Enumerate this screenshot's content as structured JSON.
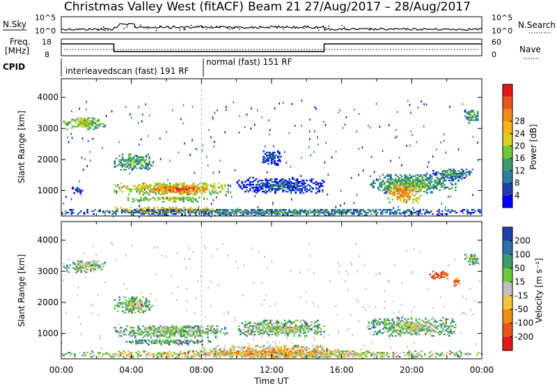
{
  "header": {
    "site": "Christmas Valley West (fitACF)",
    "beam": "Beam 21  27/Aug/2017 – 28/Aug/2017"
  },
  "colors": {
    "frame": "#000000",
    "noise": "#000000",
    "grid": "#bbbbbb",
    "ground_scatter": "#c0c0c0"
  },
  "top_panels": {
    "noise": {
      "left_label": "N.Sky",
      "right_label": "N.Search",
      "left_ticks": [
        "10^5",
        "10^0"
      ],
      "right_ticks": [
        "10^5",
        "10^0"
      ]
    },
    "freq": {
      "left_label_1": "Freq.",
      "left_label_2": "[MHz]",
      "right_label": "Nave",
      "left_ticks": [
        "18",
        "8"
      ],
      "right_ticks": [
        "60",
        "0"
      ]
    },
    "cpid": {
      "label": "CPID",
      "mode_1": "interleavedscan (fast) 191 RF",
      "mode_2": "normal (fast) 151 RF"
    }
  },
  "chart_data": [
    {
      "type": "heatmap",
      "name": "power",
      "ylabel": "Slant Range [km]",
      "ylim": [
        180,
        4600
      ],
      "yticks": [
        1000,
        2000,
        3000,
        4000
      ],
      "xlim_hours": [
        0,
        24
      ],
      "xticks": [
        "00:00",
        "04:00",
        "08:00",
        "12:00",
        "16:00",
        "20:00",
        "00:00"
      ],
      "colorbar": {
        "label": "Power [dB]",
        "ticks": [
          "4",
          "8",
          "12",
          "16",
          "20",
          "24",
          "28"
        ],
        "colors": [
          "#0000ff",
          "#1f3fa8",
          "#2d7fa0",
          "#3c9a6e",
          "#6cc93a",
          "#d7d01e",
          "#f4b41c",
          "#f08c14",
          "#e8541c",
          "#e01818"
        ]
      },
      "blobs": [
        {
          "t0": 0.1,
          "t1": 2.5,
          "r0": 2950,
          "r1": 3350,
          "level": 5
        },
        {
          "t0": 3.0,
          "t1": 5.2,
          "r0": 1650,
          "r1": 2150,
          "level": 4
        },
        {
          "t0": 3.0,
          "t1": 9.5,
          "r0": 850,
          "r1": 1250,
          "level": 6
        },
        {
          "t0": 5.0,
          "t1": 8.5,
          "r0": 880,
          "r1": 1150,
          "level": 8
        },
        {
          "t0": 3.5,
          "t1": 8.5,
          "r0": 620,
          "r1": 800,
          "level": 5
        },
        {
          "t0": 3.0,
          "t1": 9.0,
          "r0": 250,
          "r1": 450,
          "level": 7
        },
        {
          "t0": 0.0,
          "t1": 24.0,
          "r0": 180,
          "r1": 400,
          "level": 3
        },
        {
          "t0": 10.0,
          "t1": 15.0,
          "r0": 900,
          "r1": 1400,
          "level": 2
        },
        {
          "t0": 17.5,
          "t1": 22.5,
          "r0": 900,
          "r1": 1500,
          "level": 4
        },
        {
          "t0": 18.5,
          "t1": 20.5,
          "r0": 600,
          "r1": 1200,
          "level": 7
        },
        {
          "t0": 21.0,
          "t1": 23.5,
          "r0": 1300,
          "r1": 1700,
          "level": 3
        },
        {
          "t0": 23.0,
          "t1": 23.8,
          "r0": 3200,
          "r1": 3600,
          "level": 4
        },
        {
          "t0": 0.6,
          "t1": 1.2,
          "r0": 900,
          "r1": 1100,
          "level": 2
        },
        {
          "t0": 11.5,
          "t1": 12.5,
          "r0": 1800,
          "r1": 2300,
          "level": 2
        }
      ]
    },
    {
      "type": "heatmap",
      "name": "velocity",
      "ylabel": "Slant Range [km]",
      "ylim": [
        180,
        4600
      ],
      "yticks": [
        1000,
        2000,
        3000,
        4000
      ],
      "xlim_hours": [
        0,
        24
      ],
      "xticks": [
        "00:00",
        "04:00",
        "08:00",
        "12:00",
        "16:00",
        "20:00",
        "00:00"
      ],
      "xlabel": "Time UT",
      "colorbar": {
        "label": "Velocity [m s⁻¹]",
        "ticks": [
          "200",
          "100",
          "50",
          "15",
          "-15",
          "-50",
          "-100",
          "-200"
        ],
        "colors": [
          "#1f3fa8",
          "#2d6fa6",
          "#3c9a6e",
          "#6cc93a",
          "#c0c0c0",
          "#f4c43c",
          "#f08c14",
          "#e8541c",
          "#e01818"
        ]
      },
      "blobs": [
        {
          "t0": 0.1,
          "t1": 2.5,
          "r0": 2950,
          "r1": 3350,
          "level": 4
        },
        {
          "t0": 3.0,
          "t1": 5.2,
          "r0": 1650,
          "r1": 2150,
          "level": 4
        },
        {
          "t0": 3.0,
          "t1": 9.5,
          "r0": 850,
          "r1": 1250,
          "level": 4
        },
        {
          "t0": 3.5,
          "t1": 8.5,
          "r0": 620,
          "r1": 800,
          "level": 3
        },
        {
          "t0": 0.0,
          "t1": 24.0,
          "r0": 180,
          "r1": 420,
          "level": 5
        },
        {
          "t0": 8.0,
          "t1": 16.0,
          "r0": 180,
          "r1": 600,
          "level": 6
        },
        {
          "t0": 17.5,
          "t1": 22.5,
          "r0": 900,
          "r1": 1500,
          "level": 4
        },
        {
          "t0": 21.0,
          "t1": 22.0,
          "r0": 2700,
          "r1": 3000,
          "level": 8
        },
        {
          "t0": 22.3,
          "t1": 22.7,
          "r0": 2500,
          "r1": 2800,
          "level": 8
        },
        {
          "t0": 23.0,
          "t1": 23.8,
          "r0": 3200,
          "r1": 3600,
          "level": 4
        },
        {
          "t0": 10.0,
          "t1": 15.0,
          "r0": 900,
          "r1": 1400,
          "level": 4
        }
      ]
    }
  ]
}
